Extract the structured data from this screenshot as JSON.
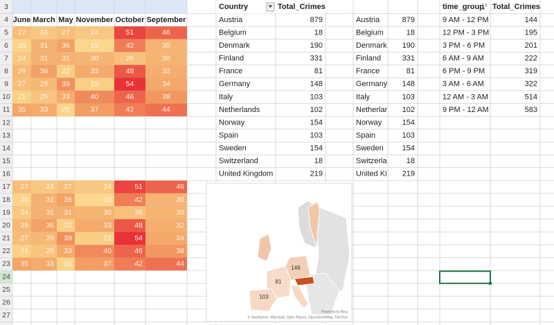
{
  "row_headers": [
    3,
    4,
    5,
    6,
    7,
    8,
    9,
    10,
    11,
    12,
    13,
    14,
    15,
    16,
    17,
    18,
    19,
    20,
    21,
    22,
    23,
    24,
    25,
    26,
    27
  ],
  "heatmap": {
    "columns": [
      "June",
      "March",
      "May",
      "November",
      "October",
      "September"
    ],
    "rows": [
      [
        27,
        24,
        27,
        24,
        51,
        46
      ],
      [
        20,
        31,
        36,
        19,
        42,
        30
      ],
      [
        24,
        31,
        31,
        30,
        26,
        30
      ],
      [
        29,
        36,
        22,
        33,
        48,
        32
      ],
      [
        27,
        29,
        39,
        22,
        54,
        34
      ],
      [
        21,
        25,
        33,
        40,
        46,
        38
      ],
      [
        35,
        33,
        20,
        37,
        42,
        44
      ]
    ]
  },
  "countries": {
    "headers": [
      "Country",
      "Total_Crimes"
    ],
    "rows": [
      [
        "Austria",
        879
      ],
      [
        "Belgium",
        18
      ],
      [
        "Denmark",
        190
      ],
      [
        "Finland",
        331
      ],
      [
        "France",
        81
      ],
      [
        "Germany",
        148
      ],
      [
        "Italy",
        103
      ],
      [
        "Netherlands",
        102
      ],
      [
        "Norway",
        154
      ],
      [
        "Spain",
        103
      ],
      [
        "Sweden",
        154
      ],
      [
        "Switzerland",
        18
      ],
      [
        "United Kingdom",
        219
      ]
    ]
  },
  "time_groups": {
    "headers": [
      "time_group",
      "Total_Crimes"
    ],
    "rows": [
      [
        "9 AM - 12 PM",
        144
      ],
      [
        "12 PM - 3 PM",
        195
      ],
      [
        "3 PM - 6 PM",
        201
      ],
      [
        "6 AM - 9 AM",
        222
      ],
      [
        "6 PM - 9 PM",
        319
      ],
      [
        "3 AM - 6 AM",
        322
      ],
      [
        "12 AM - 3 AM",
        514
      ],
      [
        "9 PM - 12 AM",
        583
      ]
    ]
  },
  "map": {
    "labels": [
      148,
      81,
      103
    ],
    "credit": "Powered by Bing",
    "attribution": "© GeoNames, Microsoft, Open Places, OpenStreetMap, TomTom"
  }
}
